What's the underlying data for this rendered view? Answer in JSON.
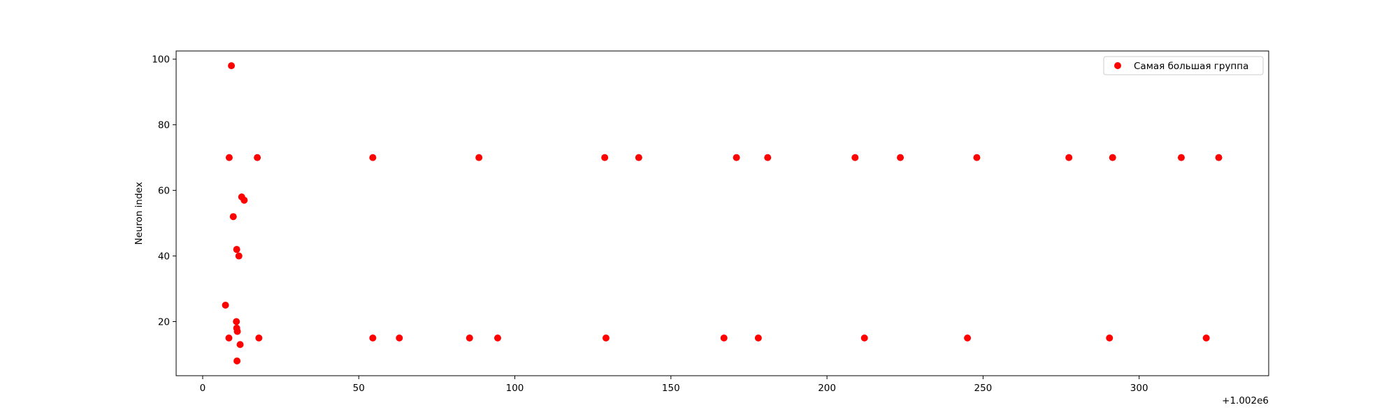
{
  "chart_data": {
    "type": "scatter",
    "title": "",
    "xlabel": "",
    "ylabel": "Neuron index",
    "x_offset_label": "+1.002e6",
    "xlim": [
      -8.5,
      341.5
    ],
    "ylim": [
      3.5,
      102.5
    ],
    "x_ticks": [
      0,
      50,
      100,
      150,
      200,
      250,
      300
    ],
    "y_ticks": [
      20,
      40,
      60,
      80,
      100
    ],
    "grid": false,
    "legend_position": "top-right",
    "series": [
      {
        "name": "Самая большая группа",
        "color": "#ff0000",
        "points": [
          {
            "x": 9.2,
            "y": 98
          },
          {
            "x": 8.5,
            "y": 70
          },
          {
            "x": 17.5,
            "y": 70
          },
          {
            "x": 54.5,
            "y": 70
          },
          {
            "x": 88.5,
            "y": 70
          },
          {
            "x": 128.8,
            "y": 70
          },
          {
            "x": 139.7,
            "y": 70
          },
          {
            "x": 171.0,
            "y": 70
          },
          {
            "x": 181.0,
            "y": 70
          },
          {
            "x": 209.0,
            "y": 70
          },
          {
            "x": 223.5,
            "y": 70
          },
          {
            "x": 248.0,
            "y": 70
          },
          {
            "x": 277.5,
            "y": 70
          },
          {
            "x": 291.5,
            "y": 70
          },
          {
            "x": 313.5,
            "y": 70
          },
          {
            "x": 325.5,
            "y": 70
          },
          {
            "x": 12.5,
            "y": 58
          },
          {
            "x": 13.3,
            "y": 57
          },
          {
            "x": 9.8,
            "y": 52
          },
          {
            "x": 10.9,
            "y": 42
          },
          {
            "x": 11.6,
            "y": 40
          },
          {
            "x": 7.3,
            "y": 25
          },
          {
            "x": 10.8,
            "y": 20
          },
          {
            "x": 10.9,
            "y": 18
          },
          {
            "x": 11.1,
            "y": 17
          },
          {
            "x": 8.4,
            "y": 15
          },
          {
            "x": 18.0,
            "y": 15
          },
          {
            "x": 54.5,
            "y": 15
          },
          {
            "x": 63.0,
            "y": 15
          },
          {
            "x": 85.5,
            "y": 15
          },
          {
            "x": 94.5,
            "y": 15
          },
          {
            "x": 129.2,
            "y": 15
          },
          {
            "x": 167.0,
            "y": 15
          },
          {
            "x": 178.0,
            "y": 15
          },
          {
            "x": 212.0,
            "y": 15
          },
          {
            "x": 245.0,
            "y": 15
          },
          {
            "x": 290.5,
            "y": 15
          },
          {
            "x": 321.5,
            "y": 15
          },
          {
            "x": 12.0,
            "y": 13
          },
          {
            "x": 11.0,
            "y": 8
          }
        ]
      }
    ]
  }
}
